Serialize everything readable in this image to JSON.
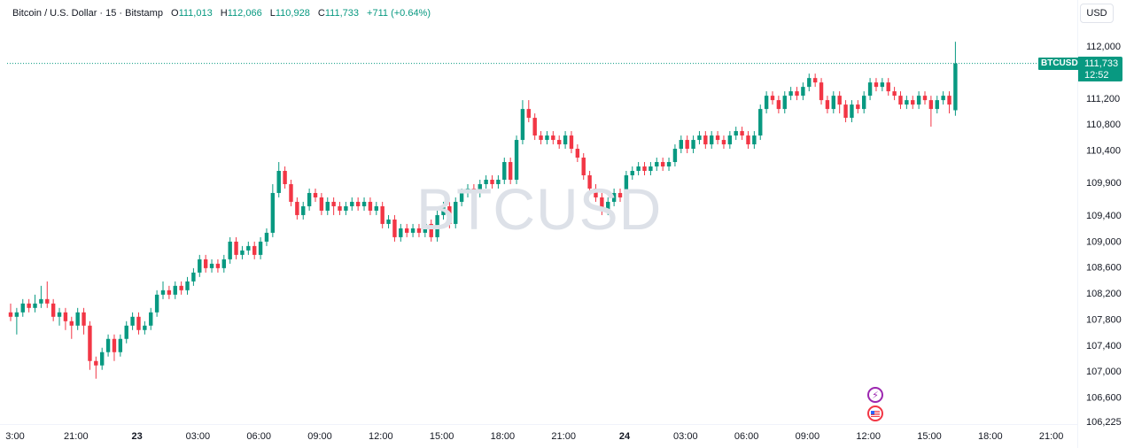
{
  "legend": {
    "symbol_title": "Bitcoin / U.S. Dollar · 15 · Bitstamp",
    "open_label": "O",
    "open_value": "111,013",
    "high_label": "H",
    "high_value": "112,066",
    "low_label": "L",
    "low_value": "110,928",
    "close_label": "C",
    "close_value": "111,733",
    "change": "+711 (+0.64%)"
  },
  "currency_button": "USD",
  "watermark": "BTCUSD",
  "last_price": {
    "symbol": "BTCUSD",
    "price": "111,733",
    "countdown": "12:52"
  },
  "colors": {
    "up": "#089981",
    "down": "#f23645",
    "grid": "#f0f3fa",
    "text": "#131722"
  },
  "event_icons": [
    "lightning-event-icon",
    "us-flag-event-icon"
  ],
  "chart_data": {
    "type": "candlestick",
    "price_axis": {
      "ticks": [
        112000,
        111200,
        110800,
        110400,
        109900,
        109400,
        109000,
        108600,
        108200,
        107800,
        107400,
        107000,
        106600,
        106225
      ],
      "tick_labels": [
        "112,000",
        "111,200",
        "110,800",
        "110,400",
        "109,900",
        "109,400",
        "109,000",
        "108,600",
        "108,200",
        "107,800",
        "107,400",
        "107,000",
        "106,600",
        "106,225"
      ]
    },
    "time_axis": {
      "labels": [
        "3:00",
        "21:00",
        "23",
        "03:00",
        "06:00",
        "09:00",
        "12:00",
        "15:00",
        "18:00",
        "21:00",
        "24",
        "03:00",
        "06:00",
        "09:00",
        "12:00",
        "15:00",
        "18:00",
        "21:00"
      ],
      "bold": [
        false,
        false,
        true,
        false,
        false,
        false,
        false,
        false,
        false,
        false,
        true,
        false,
        false,
        false,
        false,
        false,
        false,
        false
      ]
    },
    "last_close": 111733,
    "candles": [
      {
        "o": 107904,
        "c": 107836,
        "h": 108040,
        "l": 107768
      },
      {
        "o": 107836,
        "c": 107904,
        "h": 107972,
        "l": 107564
      },
      {
        "o": 107904,
        "c": 108040,
        "h": 108108,
        "l": 107836
      },
      {
        "o": 108040,
        "c": 107972,
        "h": 108108,
        "l": 107904
      },
      {
        "o": 107972,
        "c": 108040,
        "h": 108176,
        "l": 107904
      },
      {
        "o": 108040,
        "c": 108108,
        "h": 108312,
        "l": 107972
      },
      {
        "o": 108108,
        "c": 108040,
        "h": 108380,
        "l": 107972
      },
      {
        "o": 108040,
        "c": 107836,
        "h": 108108,
        "l": 107768
      },
      {
        "o": 107836,
        "c": 107904,
        "h": 107972,
        "l": 107700
      },
      {
        "o": 107904,
        "c": 107768,
        "h": 107972,
        "l": 107632
      },
      {
        "o": 107768,
        "c": 107700,
        "h": 107836,
        "l": 107496
      },
      {
        "o": 107700,
        "c": 107904,
        "h": 107972,
        "l": 107632
      },
      {
        "o": 107904,
        "c": 107700,
        "h": 107972,
        "l": 107564
      },
      {
        "o": 107700,
        "c": 107156,
        "h": 107768,
        "l": 107020
      },
      {
        "o": 107156,
        "c": 107088,
        "h": 107224,
        "l": 106884
      },
      {
        "o": 107088,
        "c": 107292,
        "h": 107360,
        "l": 107020
      },
      {
        "o": 107292,
        "c": 107496,
        "h": 107564,
        "l": 107224
      },
      {
        "o": 107496,
        "c": 107292,
        "h": 107564,
        "l": 107156
      },
      {
        "o": 107292,
        "c": 107496,
        "h": 107564,
        "l": 107224
      },
      {
        "o": 107496,
        "c": 107700,
        "h": 107768,
        "l": 107428
      },
      {
        "o": 107700,
        "c": 107836,
        "h": 107904,
        "l": 107632
      },
      {
        "o": 107836,
        "c": 107632,
        "h": 107904,
        "l": 107564
      },
      {
        "o": 107632,
        "c": 107700,
        "h": 107768,
        "l": 107564
      },
      {
        "o": 107700,
        "c": 107904,
        "h": 107972,
        "l": 107632
      },
      {
        "o": 107904,
        "c": 108176,
        "h": 108244,
        "l": 107836
      },
      {
        "o": 108176,
        "c": 108244,
        "h": 108380,
        "l": 108108
      },
      {
        "o": 108244,
        "c": 108176,
        "h": 108312,
        "l": 108108
      },
      {
        "o": 108176,
        "c": 108312,
        "h": 108380,
        "l": 108108
      },
      {
        "o": 108312,
        "c": 108244,
        "h": 108380,
        "l": 108176
      },
      {
        "o": 108244,
        "c": 108380,
        "h": 108448,
        "l": 108176
      },
      {
        "o": 108380,
        "c": 108516,
        "h": 108584,
        "l": 108312
      },
      {
        "o": 108516,
        "c": 108720,
        "h": 108788,
        "l": 108448
      },
      {
        "o": 108720,
        "c": 108584,
        "h": 108788,
        "l": 108516
      },
      {
        "o": 108584,
        "c": 108652,
        "h": 108720,
        "l": 108516
      },
      {
        "o": 108652,
        "c": 108584,
        "h": 108720,
        "l": 108516
      },
      {
        "o": 108584,
        "c": 108720,
        "h": 108788,
        "l": 108516
      },
      {
        "o": 108720,
        "c": 108992,
        "h": 109060,
        "l": 108652
      },
      {
        "o": 108992,
        "c": 108788,
        "h": 109060,
        "l": 108720
      },
      {
        "o": 108788,
        "c": 108856,
        "h": 108924,
        "l": 108720
      },
      {
        "o": 108856,
        "c": 108924,
        "h": 108992,
        "l": 108788
      },
      {
        "o": 108924,
        "c": 108788,
        "h": 108992,
        "l": 108720
      },
      {
        "o": 108788,
        "c": 108992,
        "h": 109060,
        "l": 108720
      },
      {
        "o": 108992,
        "c": 109128,
        "h": 109196,
        "l": 108924
      },
      {
        "o": 109128,
        "c": 109740,
        "h": 109876,
        "l": 109060
      },
      {
        "o": 109740,
        "c": 110080,
        "h": 110216,
        "l": 109672
      },
      {
        "o": 110080,
        "c": 109876,
        "h": 110148,
        "l": 109808
      },
      {
        "o": 109876,
        "c": 109604,
        "h": 109944,
        "l": 109536
      },
      {
        "o": 109604,
        "c": 109400,
        "h": 109672,
        "l": 109332
      },
      {
        "o": 109400,
        "c": 109536,
        "h": 109604,
        "l": 109332
      },
      {
        "o": 109536,
        "c": 109740,
        "h": 109808,
        "l": 109468
      },
      {
        "o": 109740,
        "c": 109672,
        "h": 109808,
        "l": 109604
      },
      {
        "o": 109672,
        "c": 109468,
        "h": 109740,
        "l": 109400
      },
      {
        "o": 109468,
        "c": 109604,
        "h": 109672,
        "l": 109400
      },
      {
        "o": 109604,
        "c": 109536,
        "h": 109672,
        "l": 109400
      },
      {
        "o": 109536,
        "c": 109468,
        "h": 109604,
        "l": 109400
      },
      {
        "o": 109468,
        "c": 109536,
        "h": 109604,
        "l": 109400
      },
      {
        "o": 109536,
        "c": 109604,
        "h": 109672,
        "l": 109468
      },
      {
        "o": 109604,
        "c": 109536,
        "h": 109672,
        "l": 109468
      },
      {
        "o": 109536,
        "c": 109604,
        "h": 109672,
        "l": 109468
      },
      {
        "o": 109604,
        "c": 109468,
        "h": 109672,
        "l": 109400
      },
      {
        "o": 109468,
        "c": 109536,
        "h": 109604,
        "l": 109400
      },
      {
        "o": 109536,
        "c": 109264,
        "h": 109604,
        "l": 109196
      },
      {
        "o": 109264,
        "c": 109332,
        "h": 109400,
        "l": 109196
      },
      {
        "o": 109332,
        "c": 109060,
        "h": 109400,
        "l": 108992
      },
      {
        "o": 109060,
        "c": 109196,
        "h": 109264,
        "l": 108992
      },
      {
        "o": 109196,
        "c": 109128,
        "h": 109264,
        "l": 109060
      },
      {
        "o": 109128,
        "c": 109196,
        "h": 109264,
        "l": 109060
      },
      {
        "o": 109196,
        "c": 109128,
        "h": 109264,
        "l": 109060
      },
      {
        "o": 109128,
        "c": 109264,
        "h": 109332,
        "l": 109060
      },
      {
        "o": 109264,
        "c": 109060,
        "h": 109332,
        "l": 108992
      },
      {
        "o": 109060,
        "c": 109400,
        "h": 109468,
        "l": 108992
      },
      {
        "o": 109400,
        "c": 109536,
        "h": 109604,
        "l": 109332
      },
      {
        "o": 109536,
        "c": 109264,
        "h": 109604,
        "l": 109196
      },
      {
        "o": 109264,
        "c": 109604,
        "h": 109672,
        "l": 109196
      },
      {
        "o": 109604,
        "c": 109740,
        "h": 109808,
        "l": 109536
      },
      {
        "o": 109740,
        "c": 109808,
        "h": 109876,
        "l": 109672
      },
      {
        "o": 109808,
        "c": 109740,
        "h": 109876,
        "l": 109672
      },
      {
        "o": 109740,
        "c": 109876,
        "h": 109944,
        "l": 109672
      },
      {
        "o": 109876,
        "c": 109944,
        "h": 110012,
        "l": 109808
      },
      {
        "o": 109944,
        "c": 109876,
        "h": 110012,
        "l": 109808
      },
      {
        "o": 109876,
        "c": 109944,
        "h": 110012,
        "l": 109808
      },
      {
        "o": 109944,
        "c": 110216,
        "h": 110284,
        "l": 109876
      },
      {
        "o": 110216,
        "c": 109944,
        "h": 110284,
        "l": 109876
      },
      {
        "o": 109944,
        "c": 110556,
        "h": 110624,
        "l": 109876
      },
      {
        "o": 110556,
        "c": 111032,
        "h": 111168,
        "l": 110488
      },
      {
        "o": 111032,
        "c": 110896,
        "h": 111168,
        "l": 110828
      },
      {
        "o": 110896,
        "c": 110624,
        "h": 110964,
        "l": 110556
      },
      {
        "o": 110624,
        "c": 110556,
        "h": 110692,
        "l": 110488
      },
      {
        "o": 110556,
        "c": 110624,
        "h": 110692,
        "l": 110488
      },
      {
        "o": 110624,
        "c": 110556,
        "h": 110692,
        "l": 110488
      },
      {
        "o": 110556,
        "c": 110488,
        "h": 110624,
        "l": 110420
      },
      {
        "o": 110488,
        "c": 110624,
        "h": 110692,
        "l": 110420
      },
      {
        "o": 110624,
        "c": 110420,
        "h": 110692,
        "l": 110352
      },
      {
        "o": 110420,
        "c": 110284,
        "h": 110488,
        "l": 110216
      },
      {
        "o": 110284,
        "c": 110012,
        "h": 110352,
        "l": 109944
      },
      {
        "o": 110012,
        "c": 109808,
        "h": 110080,
        "l": 109740
      },
      {
        "o": 109808,
        "c": 109672,
        "h": 109876,
        "l": 109604
      },
      {
        "o": 109672,
        "c": 109468,
        "h": 109740,
        "l": 109400
      },
      {
        "o": 109468,
        "c": 109604,
        "h": 109672,
        "l": 109400
      },
      {
        "o": 109604,
        "c": 109740,
        "h": 109808,
        "l": 109536
      },
      {
        "o": 109740,
        "c": 109672,
        "h": 109808,
        "l": 109604
      },
      {
        "o": 109672,
        "c": 110012,
        "h": 110080,
        "l": 109604
      },
      {
        "o": 110012,
        "c": 110080,
        "h": 110148,
        "l": 109944
      },
      {
        "o": 110080,
        "c": 110148,
        "h": 110216,
        "l": 110012
      },
      {
        "o": 110148,
        "c": 110080,
        "h": 110216,
        "l": 110012
      },
      {
        "o": 110080,
        "c": 110148,
        "h": 110216,
        "l": 110012
      },
      {
        "o": 110148,
        "c": 110216,
        "h": 110284,
        "l": 110080
      },
      {
        "o": 110216,
        "c": 110148,
        "h": 110284,
        "l": 110080
      },
      {
        "o": 110148,
        "c": 110216,
        "h": 110284,
        "l": 110080
      },
      {
        "o": 110216,
        "c": 110420,
        "h": 110488,
        "l": 110148
      },
      {
        "o": 110420,
        "c": 110556,
        "h": 110624,
        "l": 110352
      },
      {
        "o": 110556,
        "c": 110420,
        "h": 110624,
        "l": 110352
      },
      {
        "o": 110420,
        "c": 110556,
        "h": 110624,
        "l": 110352
      },
      {
        "o": 110556,
        "c": 110624,
        "h": 110692,
        "l": 110488
      },
      {
        "o": 110624,
        "c": 110488,
        "h": 110692,
        "l": 110420
      },
      {
        "o": 110488,
        "c": 110624,
        "h": 110692,
        "l": 110420
      },
      {
        "o": 110624,
        "c": 110556,
        "h": 110692,
        "l": 110488
      },
      {
        "o": 110556,
        "c": 110488,
        "h": 110624,
        "l": 110420
      },
      {
        "o": 110488,
        "c": 110624,
        "h": 110692,
        "l": 110420
      },
      {
        "o": 110624,
        "c": 110692,
        "h": 110760,
        "l": 110556
      },
      {
        "o": 110692,
        "c": 110624,
        "h": 110760,
        "l": 110556
      },
      {
        "o": 110624,
        "c": 110488,
        "h": 110692,
        "l": 110420
      },
      {
        "o": 110488,
        "c": 110624,
        "h": 110692,
        "l": 110420
      },
      {
        "o": 110624,
        "c": 111032,
        "h": 111100,
        "l": 110556
      },
      {
        "o": 111032,
        "c": 111236,
        "h": 111304,
        "l": 110964
      },
      {
        "o": 111236,
        "c": 111168,
        "h": 111304,
        "l": 111100
      },
      {
        "o": 111168,
        "c": 111032,
        "h": 111236,
        "l": 110964
      },
      {
        "o": 111032,
        "c": 111236,
        "h": 111304,
        "l": 110964
      },
      {
        "o": 111236,
        "c": 111304,
        "h": 111372,
        "l": 111168
      },
      {
        "o": 111304,
        "c": 111236,
        "h": 111372,
        "l": 111168
      },
      {
        "o": 111236,
        "c": 111372,
        "h": 111440,
        "l": 111168
      },
      {
        "o": 111372,
        "c": 111508,
        "h": 111576,
        "l": 111304
      },
      {
        "o": 111508,
        "c": 111440,
        "h": 111576,
        "l": 111372
      },
      {
        "o": 111440,
        "c": 111168,
        "h": 111508,
        "l": 111100
      },
      {
        "o": 111168,
        "c": 111032,
        "h": 111236,
        "l": 110964
      },
      {
        "o": 111032,
        "c": 111236,
        "h": 111304,
        "l": 110964
      },
      {
        "o": 111236,
        "c": 111100,
        "h": 111304,
        "l": 110964
      },
      {
        "o": 111100,
        "c": 110896,
        "h": 111168,
        "l": 110828
      },
      {
        "o": 110896,
        "c": 111100,
        "h": 111168,
        "l": 110828
      },
      {
        "o": 111100,
        "c": 111032,
        "h": 111168,
        "l": 110964
      },
      {
        "o": 111032,
        "c": 111236,
        "h": 111304,
        "l": 110964
      },
      {
        "o": 111236,
        "c": 111440,
        "h": 111508,
        "l": 111168
      },
      {
        "o": 111440,
        "c": 111372,
        "h": 111508,
        "l": 111304
      },
      {
        "o": 111372,
        "c": 111440,
        "h": 111508,
        "l": 111304
      },
      {
        "o": 111440,
        "c": 111304,
        "h": 111508,
        "l": 111236
      },
      {
        "o": 111304,
        "c": 111236,
        "h": 111372,
        "l": 111168
      },
      {
        "o": 111236,
        "c": 111100,
        "h": 111304,
        "l": 111032
      },
      {
        "o": 111100,
        "c": 111168,
        "h": 111236,
        "l": 111032
      },
      {
        "o": 111168,
        "c": 111100,
        "h": 111236,
        "l": 111032
      },
      {
        "o": 111100,
        "c": 111236,
        "h": 111304,
        "l": 111032
      },
      {
        "o": 111236,
        "c": 111168,
        "h": 111304,
        "l": 111100
      },
      {
        "o": 111168,
        "c": 111032,
        "h": 111236,
        "l": 110760
      },
      {
        "o": 111032,
        "c": 111168,
        "h": 111236,
        "l": 110964
      },
      {
        "o": 111168,
        "c": 111236,
        "h": 111304,
        "l": 111100
      },
      {
        "o": 111236,
        "c": 111100,
        "h": 111304,
        "l": 110964
      },
      {
        "o": 111013,
        "c": 111733,
        "h": 112066,
        "l": 110928
      }
    ]
  }
}
